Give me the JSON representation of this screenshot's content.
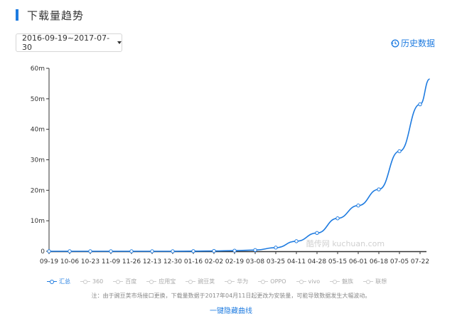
{
  "header": {
    "title": "下载量趋势"
  },
  "date_range": {
    "label": "2016-09-19~2017-07-30"
  },
  "history_link": {
    "label": "历史数据"
  },
  "watermark": "酷传网 kuchuan.com",
  "legend": [
    {
      "label": "汇总",
      "active": true
    },
    {
      "label": "360",
      "active": false
    },
    {
      "label": "百度",
      "active": false
    },
    {
      "label": "应用宝",
      "active": false
    },
    {
      "label": "豌豆荚",
      "active": false
    },
    {
      "label": "华为",
      "active": false
    },
    {
      "label": "OPPO",
      "active": false
    },
    {
      "label": "vivo",
      "active": false
    },
    {
      "label": "魅族",
      "active": false
    },
    {
      "label": "联想",
      "active": false
    }
  ],
  "note": "注：由于豌豆荚市场接口更换，下载量数据于2017年04月11日起更改为安装量，可能导致数据发生大幅波动。",
  "hide_all_label": "一键隐藏曲线",
  "colors": {
    "accent": "#1e7be0"
  },
  "chart_data": {
    "type": "line",
    "title": "",
    "xlabel": "",
    "ylabel": "",
    "ylim": [
      0,
      60
    ],
    "y_unit": "m",
    "y_ticks": [
      "0",
      "10m",
      "20m",
      "30m",
      "40m",
      "50m",
      "60m"
    ],
    "x_ticks": [
      "09-19",
      "10-06",
      "10-23",
      "11-09",
      "11-26",
      "12-13",
      "12-30",
      "01-16",
      "02-02",
      "02-19",
      "03-08",
      "03-25",
      "04-11",
      "04-28",
      "05-15",
      "06-01",
      "06-18",
      "07-05",
      "07-22"
    ],
    "grid": false,
    "series": [
      {
        "name": "汇总",
        "x": [
          "2016-09-19",
          "2016-10-06",
          "2016-10-23",
          "2016-11-09",
          "2016-11-26",
          "2016-12-13",
          "2016-12-30",
          "2017-01-16",
          "2017-02-02",
          "2017-02-19",
          "2017-03-08",
          "2017-03-25",
          "2017-04-11",
          "2017-04-28",
          "2017-05-15",
          "2017-06-01",
          "2017-06-18",
          "2017-07-05",
          "2017-07-22",
          "2017-07-30"
        ],
        "values": [
          0,
          0,
          0,
          0,
          0,
          0,
          0,
          0.05,
          0.1,
          0.2,
          0.4,
          1.2,
          3.3,
          6.0,
          10.8,
          15.0,
          20.3,
          32.8,
          48.2,
          56.5
        ]
      }
    ],
    "markers": [
      {
        "x": "2016-09-19",
        "y": 0
      },
      {
        "x": "2016-10-06",
        "y": 0
      },
      {
        "x": "2016-10-23",
        "y": 0
      },
      {
        "x": "2016-11-09",
        "y": 0
      },
      {
        "x": "2016-11-26",
        "y": 0
      },
      {
        "x": "2016-12-13",
        "y": 0
      },
      {
        "x": "2016-12-30",
        "y": 0
      },
      {
        "x": "2017-01-16",
        "y": 0.05
      },
      {
        "x": "2017-02-02",
        "y": 0.1
      },
      {
        "x": "2017-02-19",
        "y": 0.2
      },
      {
        "x": "2017-03-08",
        "y": 0.4
      },
      {
        "x": "2017-03-25",
        "y": 1.2
      },
      {
        "x": "2017-04-11",
        "y": 3.3
      },
      {
        "x": "2017-04-28",
        "y": 6.0
      },
      {
        "x": "2017-05-15",
        "y": 10.8
      },
      {
        "x": "2017-06-01",
        "y": 15.0
      },
      {
        "x": "2017-06-18",
        "y": 20.3
      },
      {
        "x": "2017-07-05",
        "y": 32.8
      },
      {
        "x": "2017-07-22",
        "y": 48.2
      }
    ]
  }
}
